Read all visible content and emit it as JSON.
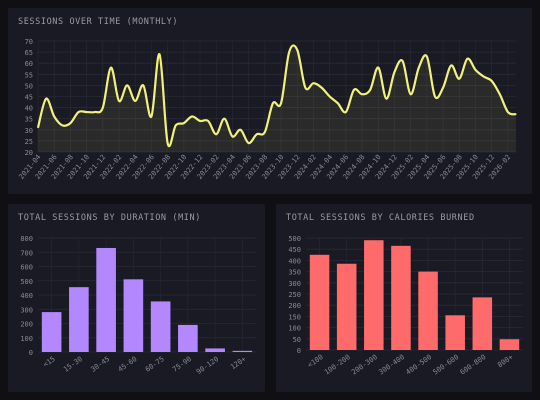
{
  "theme": {
    "background": "#0f0f14",
    "panel": "#1a1a24",
    "grid": "#2a2a36",
    "axis_text": "#8a8a98",
    "line_color": "#f2f27a",
    "duration_bar_color": "#b388ff",
    "calories_bar_color": "#ff6b6b"
  },
  "chart_data": [
    {
      "id": "sessions-over-time",
      "type": "line",
      "title": "SESSIONS OVER TIME (MONTHLY)",
      "xlabel": "",
      "ylabel": "",
      "ylim": [
        20,
        70
      ],
      "yticks": [
        20,
        25,
        30,
        35,
        40,
        45,
        50,
        55,
        60,
        65,
        70
      ],
      "x_tick_labels": [
        "2021-04",
        "2021-06",
        "2021-08",
        "2021-10",
        "2021-12",
        "2022-02",
        "2022-04",
        "2022-06",
        "2022-08",
        "2022-10",
        "2022-12",
        "2023-02",
        "2023-04",
        "2023-06",
        "2023-08",
        "2023-10",
        "2023-12",
        "2024-02",
        "2024-04",
        "2024-06",
        "2024-08",
        "2024-10",
        "2024-12",
        "2025-02",
        "2025-04",
        "2025-06",
        "2025-08",
        "2025-10",
        "2025-12",
        "2026-02"
      ],
      "x": [
        "2021-04",
        "2021-05",
        "2021-06",
        "2021-07",
        "2021-08",
        "2021-09",
        "2021-10",
        "2021-11",
        "2021-12",
        "2022-01",
        "2022-02",
        "2022-03",
        "2022-04",
        "2022-05",
        "2022-06",
        "2022-07",
        "2022-08",
        "2022-09",
        "2022-10",
        "2022-11",
        "2022-12",
        "2023-01",
        "2023-02",
        "2023-03",
        "2023-04",
        "2023-05",
        "2023-06",
        "2023-07",
        "2023-08",
        "2023-09",
        "2023-10",
        "2023-11",
        "2023-12",
        "2024-01",
        "2024-02",
        "2024-03",
        "2024-04",
        "2024-05",
        "2024-06",
        "2024-07",
        "2024-08",
        "2024-09",
        "2024-10",
        "2024-11",
        "2024-12",
        "2025-01",
        "2025-02",
        "2025-03",
        "2025-04",
        "2025-05",
        "2025-06",
        "2025-07",
        "2025-08",
        "2025-09",
        "2025-10",
        "2025-11",
        "2025-12",
        "2026-01",
        "2026-02",
        "2026-03"
      ],
      "values": [
        31,
        44,
        36,
        32,
        33,
        38,
        38,
        38,
        40,
        58,
        43,
        50,
        43,
        50,
        36,
        64,
        24,
        32,
        33,
        36,
        34,
        34,
        28,
        35,
        27,
        30,
        24,
        28,
        29,
        42,
        42,
        65,
        66,
        49,
        51,
        49,
        45,
        42,
        38,
        48,
        46,
        48,
        58,
        44,
        56,
        61,
        46,
        58,
        63,
        45,
        49,
        59,
        53,
        62,
        57,
        54,
        52,
        46,
        38,
        37
      ],
      "grid": true
    },
    {
      "id": "sessions-by-duration",
      "type": "bar",
      "title": "TOTAL SESSIONS BY DURATION (MIN)",
      "xlabel": "",
      "ylabel": "",
      "categories": [
        "<15",
        "15-30",
        "30-45",
        "45-60",
        "60-75",
        "75-90",
        "90-120",
        "120+"
      ],
      "values": [
        280,
        455,
        730,
        510,
        355,
        190,
        25,
        8
      ],
      "ylim": [
        0,
        800
      ],
      "yticks": [
        0,
        100,
        200,
        300,
        400,
        500,
        600,
        700,
        800
      ],
      "grid": true
    },
    {
      "id": "sessions-by-calories",
      "type": "bar",
      "title": "TOTAL SESSIONS BY CALORIES BURNED",
      "xlabel": "",
      "ylabel": "",
      "categories": [
        "<100",
        "100-200",
        "200-300",
        "300-400",
        "400-500",
        "500-600",
        "600-800",
        "800+"
      ],
      "values": [
        425,
        385,
        490,
        465,
        350,
        155,
        235,
        48
      ],
      "ylim": [
        0,
        500
      ],
      "yticks": [
        0,
        50,
        100,
        150,
        200,
        250,
        300,
        350,
        400,
        450,
        500
      ],
      "grid": true
    }
  ]
}
